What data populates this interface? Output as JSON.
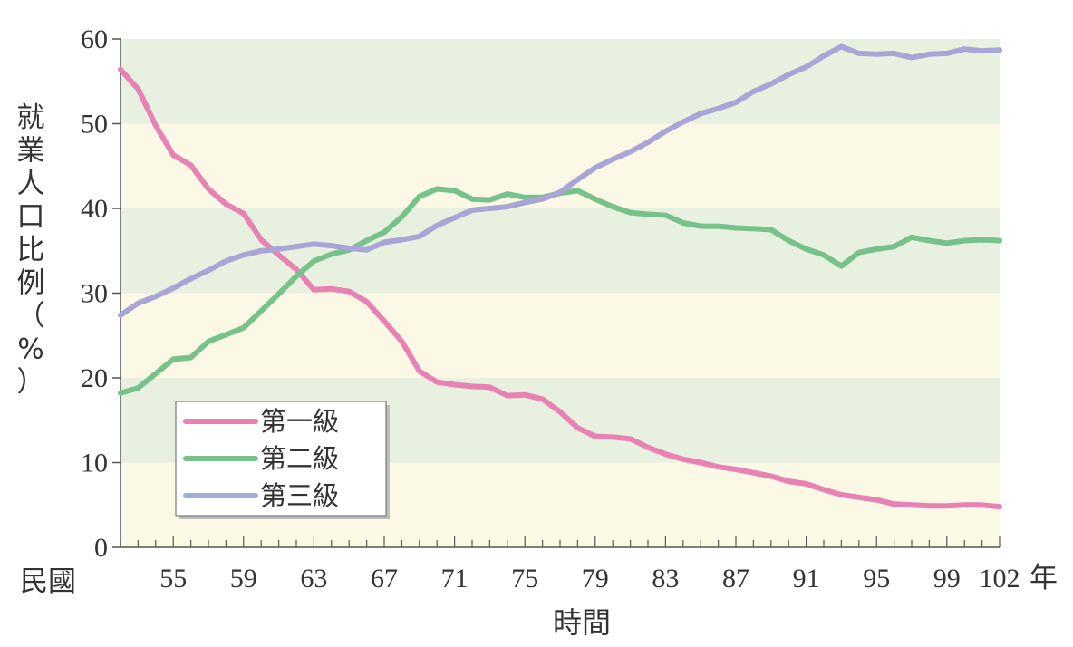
{
  "chart_data": {
    "type": "line",
    "title": "",
    "ylabel": "就業人口比例（%）",
    "xlabel": "時間",
    "x_prefix": "民國",
    "x_unit": "年",
    "ylim": [
      0,
      60
    ],
    "xlim": [
      52,
      102
    ],
    "y_ticks": [
      0,
      10,
      20,
      30,
      40,
      50,
      60
    ],
    "x_ticks": [
      55,
      59,
      63,
      67,
      71,
      75,
      79,
      83,
      87,
      91,
      95,
      99,
      102
    ],
    "x": [
      52,
      53,
      54,
      55,
      56,
      57,
      58,
      59,
      60,
      61,
      62,
      63,
      64,
      65,
      66,
      67,
      68,
      69,
      70,
      71,
      72,
      73,
      74,
      75,
      76,
      77,
      78,
      79,
      80,
      81,
      82,
      83,
      84,
      85,
      86,
      87,
      88,
      89,
      90,
      91,
      92,
      93,
      94,
      95,
      96,
      97,
      98,
      99,
      100,
      101,
      102
    ],
    "series": [
      {
        "name": "第一級",
        "color": "#e882b4",
        "values": [
          56.4,
          54.1,
          49.8,
          46.3,
          45.1,
          42.3,
          40.5,
          39.4,
          36.3,
          34.5,
          32.8,
          30.4,
          30.5,
          30.2,
          29.0,
          26.7,
          24.3,
          20.8,
          19.5,
          19.2,
          19.0,
          18.9,
          17.9,
          18.0,
          17.5,
          16.0,
          14.1,
          13.1,
          13.0,
          12.8,
          11.8,
          11.0,
          10.4,
          10.0,
          9.5,
          9.2,
          8.8,
          8.4,
          7.8,
          7.5,
          6.8,
          6.2,
          5.9,
          5.6,
          5.1,
          5.0,
          4.9,
          4.9,
          5.0,
          5.0,
          4.8
        ]
      },
      {
        "name": "第二級",
        "color": "#77c28b",
        "values": [
          18.2,
          18.8,
          20.5,
          22.2,
          22.4,
          24.3,
          25.1,
          25.9,
          27.9,
          29.9,
          32.0,
          33.8,
          34.6,
          35.1,
          36.2,
          37.2,
          39.0,
          41.4,
          42.3,
          42.1,
          41.1,
          41.0,
          41.7,
          41.3,
          41.3,
          41.8,
          42.1,
          41.1,
          40.2,
          39.5,
          39.3,
          39.2,
          38.3,
          37.9,
          37.9,
          37.7,
          37.6,
          37.5,
          36.2,
          35.2,
          34.5,
          33.2,
          34.8,
          35.2,
          35.5,
          36.6,
          36.2,
          35.9,
          36.2,
          36.3,
          36.2
        ]
      },
      {
        "name": "第三級",
        "color": "#a9a5d6",
        "values": [
          27.4,
          28.8,
          29.6,
          30.6,
          31.7,
          32.7,
          33.8,
          34.5,
          35.0,
          35.2,
          35.5,
          35.8,
          35.6,
          35.3,
          35.1,
          36.0,
          36.3,
          36.7,
          38.0,
          38.9,
          39.8,
          40.0,
          40.2,
          40.7,
          41.1,
          41.9,
          43.4,
          44.8,
          45.8,
          46.7,
          47.8,
          49.1,
          50.2,
          51.2,
          51.8,
          52.5,
          53.8,
          54.7,
          55.8,
          56.7,
          58.0,
          59.1,
          58.3,
          58.2,
          58.3,
          57.8,
          58.2,
          58.3,
          58.8,
          58.6,
          58.7
        ]
      }
    ]
  },
  "axis_text": {
    "y_title_chars": [
      "就",
      "業",
      "人",
      "口",
      "比",
      "例",
      "（",
      "%",
      "）"
    ],
    "prefix": "民國",
    "suffix": "年",
    "xlabel": "時間"
  },
  "legend_items": [
    "第一級",
    "第二級",
    "第三級"
  ]
}
